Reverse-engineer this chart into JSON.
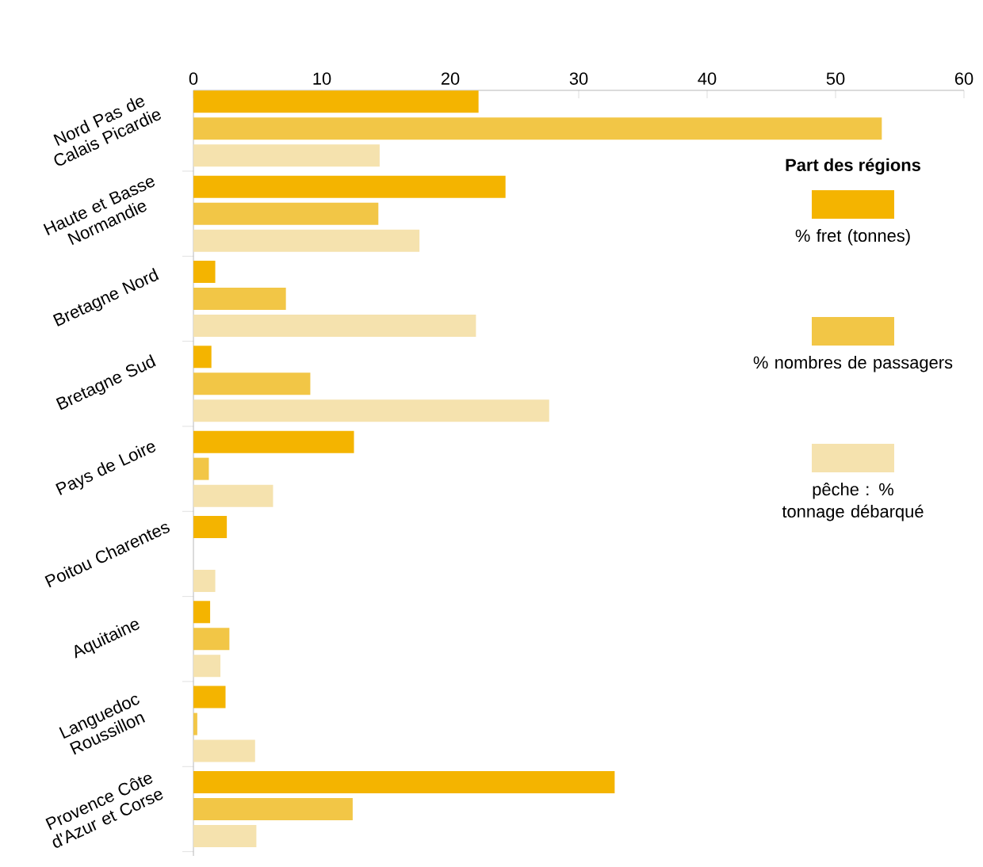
{
  "chart_data": {
    "type": "bar",
    "orientation": "horizontal",
    "categories": [
      "Nord Pas de Calais Picardie",
      "Haute et Basse Normandie",
      "Bretagne Nord",
      "Bretagne Sud",
      "Pays de Loire",
      "Poitou Charentes",
      "Aquitaine",
      "Languedoc Roussillon",
      "Provence Côte d'Azur et Corse"
    ],
    "series": [
      {
        "name": "% fret (tonnes)",
        "color": "#f4b400",
        "values": [
          22.2,
          24.3,
          1.7,
          1.4,
          12.5,
          2.6,
          1.3,
          2.5,
          32.8
        ]
      },
      {
        "name": "% nombres de passagers",
        "color": "#f2c646",
        "values": [
          53.6,
          14.4,
          7.2,
          9.1,
          1.2,
          null,
          2.8,
          0.3,
          12.4
        ]
      },
      {
        "name": "pêche : % tonnage débarqué",
        "color": "#f5e2ae",
        "values": [
          14.5,
          17.6,
          22.0,
          27.7,
          6.2,
          1.7,
          2.1,
          4.8,
          4.9
        ]
      }
    ],
    "xlim": [
      0,
      60
    ],
    "xticks": [
      0,
      10,
      20,
      30,
      40,
      50,
      60
    ],
    "legend": "right",
    "legend_title": "Part des régions"
  }
}
